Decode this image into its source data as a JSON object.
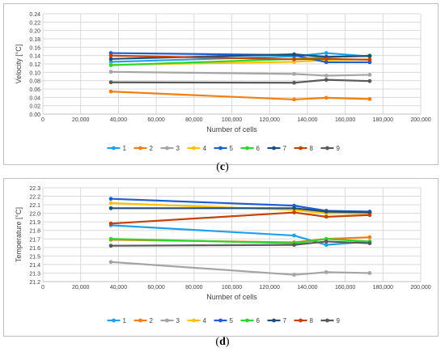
{
  "chart_data": [
    {
      "type": "line",
      "panel_label": "c",
      "ylabel": "Velocity [°C]",
      "xlabel": "Number of cells",
      "x": [
        36000,
        133000,
        150000,
        173000
      ],
      "xlim": [
        0,
        200000
      ],
      "xticks": [
        0,
        20000,
        40000,
        60000,
        80000,
        100000,
        120000,
        140000,
        160000,
        180000,
        200000
      ],
      "xtick_labels": [
        "0",
        "20,000",
        "40,000",
        "60,000",
        "80,000",
        "100,000",
        "120,000",
        "140,000",
        "160,000",
        "180,000",
        "200,000"
      ],
      "ylim": [
        0,
        0.24
      ],
      "yticks": [
        0,
        0.02,
        0.04,
        0.06,
        0.08,
        0.1,
        0.12,
        0.14,
        0.16,
        0.18,
        0.2,
        0.22,
        0.24
      ],
      "ytick_labels": [
        "0.00",
        "0.02",
        "0.04",
        "0.06",
        "0.08",
        "0.10",
        "0.12",
        "0.14",
        "0.16",
        "0.18",
        "0.20",
        "0.22",
        "0.24"
      ],
      "grid": true,
      "legend": "bottom",
      "series": [
        {
          "name": "1",
          "color": "#1ea1ea",
          "values": [
            0.125,
            0.138,
            0.146,
            0.138
          ]
        },
        {
          "name": "2",
          "color": "#f07f14",
          "values": [
            0.054,
            0.035,
            0.039,
            0.036
          ]
        },
        {
          "name": "3",
          "color": "#a5a5a5",
          "values": [
            0.101,
            0.096,
            0.092,
            0.094
          ]
        },
        {
          "name": "4",
          "color": "#ffc000",
          "values": [
            0.118,
            0.125,
            0.129,
            0.131
          ]
        },
        {
          "name": "5",
          "color": "#1f5fcf",
          "values": [
            0.146,
            0.141,
            0.124,
            0.124
          ]
        },
        {
          "name": "6",
          "color": "#2ed52e",
          "values": [
            0.117,
            0.132,
            0.136,
            0.14
          ]
        },
        {
          "name": "7",
          "color": "#1f4e79",
          "values": [
            0.132,
            0.143,
            0.137,
            0.139
          ]
        },
        {
          "name": "8",
          "color": "#c5420a",
          "values": [
            0.14,
            0.131,
            0.132,
            0.13
          ]
        },
        {
          "name": "9",
          "color": "#595959",
          "values": [
            0.076,
            0.075,
            0.082,
            0.079
          ]
        }
      ]
    },
    {
      "type": "line",
      "panel_label": "d",
      "ylabel": "Temperature [°C]",
      "xlabel": "Number of cells",
      "x": [
        36000,
        133000,
        150000,
        173000
      ],
      "xlim": [
        0,
        200000
      ],
      "xticks": [
        0,
        20000,
        40000,
        60000,
        80000,
        100000,
        120000,
        140000,
        160000,
        180000,
        200000
      ],
      "xtick_labels": [
        "0",
        "20,000",
        "40,000",
        "60,000",
        "80,000",
        "100,000",
        "120,000",
        "140,000",
        "160,000",
        "180,000",
        "200,000"
      ],
      "ylim": [
        21.2,
        22.3
      ],
      "yticks": [
        21.2,
        21.3,
        21.4,
        21.5,
        21.6,
        21.7,
        21.8,
        21.9,
        22.0,
        22.1,
        22.2,
        22.3
      ],
      "ytick_labels": [
        "21.2",
        "21.3",
        "21.4",
        "21.5",
        "21.6",
        "21.7",
        "21.8",
        "21.9",
        "22.0",
        "22.1",
        "22.2",
        "22.3"
      ],
      "grid": true,
      "legend": "bottom",
      "series": [
        {
          "name": "1",
          "color": "#1ea1ea",
          "values": [
            21.86,
            21.74,
            21.63,
            21.67
          ]
        },
        {
          "name": "2",
          "color": "#f07f14",
          "values": [
            21.69,
            21.66,
            21.7,
            21.72
          ]
        },
        {
          "name": "3",
          "color": "#a5a5a5",
          "values": [
            21.43,
            21.28,
            21.31,
            21.3
          ]
        },
        {
          "name": "4",
          "color": "#ffc000",
          "values": [
            22.12,
            22.04,
            22.0,
            22.0
          ]
        },
        {
          "name": "5",
          "color": "#1f5fcf",
          "values": [
            22.17,
            22.09,
            22.03,
            22.02
          ]
        },
        {
          "name": "6",
          "color": "#2ed52e",
          "values": [
            21.7,
            21.65,
            21.7,
            21.67
          ]
        },
        {
          "name": "7",
          "color": "#1f4e79",
          "values": [
            22.06,
            22.06,
            22.02,
            22.01
          ]
        },
        {
          "name": "8",
          "color": "#c5420a",
          "values": [
            21.88,
            22.01,
            21.96,
            21.98
          ]
        },
        {
          "name": "9",
          "color": "#595959",
          "values": [
            21.62,
            21.63,
            21.67,
            21.65
          ]
        }
      ]
    }
  ]
}
